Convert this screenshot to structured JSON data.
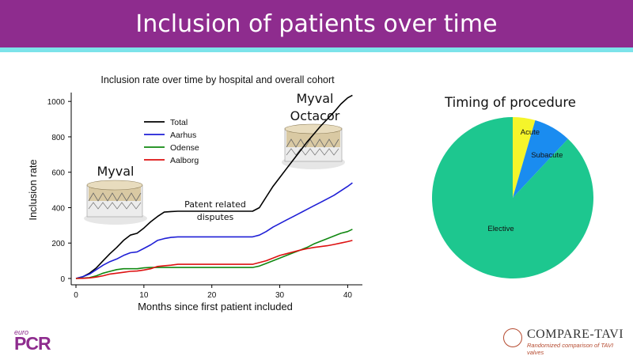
{
  "slide": {
    "title": "Inclusion of patients over time"
  },
  "annotations": {
    "myval_left": "Myval",
    "myval_right_line1": "Myval",
    "myval_right_line2": "Octacor",
    "dispute_line1": "Patent related",
    "dispute_line2": "disputes"
  },
  "footer": {
    "left_logo_small": "euro",
    "left_logo_main": "PCR",
    "right_logo_name": "COMPARE-TAVI",
    "right_logo_tagline": "Randomized comparison of TAVI valves"
  },
  "colors": {
    "header": "#8e2c8e",
    "header_strip": "#7ce3ea",
    "total": "#000000",
    "aarhus": "#1f1fd6",
    "odense": "#118811",
    "aalborg": "#dd1111",
    "pie_acute": "#f5f52a",
    "pie_subacute": "#1a8cf0",
    "pie_elective": "#1dc78f"
  },
  "chart_data": [
    {
      "type": "line",
      "title": "Inclusion rate over time by hospital and overall cohort",
      "xlabel": "Months since first patient included",
      "ylabel": "Inclusion rate",
      "xlim": [
        0,
        41
      ],
      "ylim": [
        0,
        1050
      ],
      "xticks": [
        0,
        10,
        20,
        30,
        40
      ],
      "yticks": [
        0,
        200,
        400,
        600,
        800,
        1000
      ],
      "grid": false,
      "legend_position": "top-center",
      "series": [
        {
          "name": "Total",
          "color_key": "total",
          "points": [
            [
              0,
              0
            ],
            [
              1,
              10
            ],
            [
              2,
              30
            ],
            [
              3,
              60
            ],
            [
              4,
              100
            ],
            [
              5,
              140
            ],
            [
              6,
              175
            ],
            [
              7,
              215
            ],
            [
              8,
              245
            ],
            [
              9,
              255
            ],
            [
              10,
              285
            ],
            [
              11,
              320
            ],
            [
              12,
              350
            ],
            [
              13,
              375
            ],
            [
              14,
              378
            ],
            [
              15,
              380
            ],
            [
              20,
              380
            ],
            [
              26,
              380
            ],
            [
              27,
              400
            ],
            [
              28,
              460
            ],
            [
              29,
              520
            ],
            [
              30,
              570
            ],
            [
              31,
              620
            ],
            [
              32,
              670
            ],
            [
              33,
              720
            ],
            [
              34,
              770
            ],
            [
              35,
              815
            ],
            [
              36,
              860
            ],
            [
              37,
              900
            ],
            [
              38,
              940
            ],
            [
              39,
              985
            ],
            [
              40,
              1020
            ],
            [
              40.7,
              1035
            ]
          ]
        },
        {
          "name": "Aarhus",
          "color_key": "aarhus",
          "points": [
            [
              0,
              0
            ],
            [
              1,
              10
            ],
            [
              2,
              25
            ],
            [
              3,
              50
            ],
            [
              4,
              75
            ],
            [
              5,
              95
            ],
            [
              6,
              110
            ],
            [
              7,
              130
            ],
            [
              8,
              145
            ],
            [
              9,
              150
            ],
            [
              10,
              170
            ],
            [
              11,
              190
            ],
            [
              12,
              215
            ],
            [
              13,
              225
            ],
            [
              14,
              232
            ],
            [
              15,
              235
            ],
            [
              20,
              235
            ],
            [
              26,
              235
            ],
            [
              27,
              245
            ],
            [
              28,
              265
            ],
            [
              29,
              290
            ],
            [
              30,
              310
            ],
            [
              31,
              330
            ],
            [
              32,
              350
            ],
            [
              33,
              370
            ],
            [
              34,
              390
            ],
            [
              35,
              410
            ],
            [
              36,
              430
            ],
            [
              37,
              450
            ],
            [
              38,
              470
            ],
            [
              39,
              495
            ],
            [
              40,
              520
            ],
            [
              40.7,
              540
            ]
          ]
        },
        {
          "name": "Odense",
          "color_key": "odense",
          "points": [
            [
              0,
              0
            ],
            [
              1,
              2
            ],
            [
              2,
              5
            ],
            [
              3,
              15
            ],
            [
              4,
              30
            ],
            [
              5,
              40
            ],
            [
              6,
              50
            ],
            [
              7,
              55
            ],
            [
              8,
              55
            ],
            [
              9,
              55
            ],
            [
              10,
              60
            ],
            [
              11,
              62
            ],
            [
              12,
              62
            ],
            [
              15,
              62
            ],
            [
              20,
              62
            ],
            [
              26,
              62
            ],
            [
              27,
              70
            ],
            [
              28,
              85
            ],
            [
              29,
              100
            ],
            [
              30,
              115
            ],
            [
              31,
              130
            ],
            [
              32,
              145
            ],
            [
              33,
              160
            ],
            [
              34,
              175
            ],
            [
              35,
              195
            ],
            [
              36,
              210
            ],
            [
              37,
              225
            ],
            [
              38,
              240
            ],
            [
              39,
              255
            ],
            [
              40,
              265
            ],
            [
              40.7,
              278
            ]
          ]
        },
        {
          "name": "Aalborg",
          "color_key": "aalborg",
          "points": [
            [
              0,
              0
            ],
            [
              1,
              1
            ],
            [
              2,
              3
            ],
            [
              3,
              8
            ],
            [
              4,
              15
            ],
            [
              5,
              25
            ],
            [
              6,
              30
            ],
            [
              7,
              35
            ],
            [
              8,
              40
            ],
            [
              9,
              42
            ],
            [
              10,
              48
            ],
            [
              11,
              55
            ],
            [
              12,
              68
            ],
            [
              13,
              72
            ],
            [
              14,
              75
            ],
            [
              15,
              80
            ],
            [
              20,
              80
            ],
            [
              26,
              80
            ],
            [
              27,
              90
            ],
            [
              28,
              100
            ],
            [
              29,
              115
            ],
            [
              30,
              130
            ],
            [
              31,
              140
            ],
            [
              32,
              150
            ],
            [
              33,
              160
            ],
            [
              34,
              168
            ],
            [
              35,
              175
            ],
            [
              36,
              180
            ],
            [
              37,
              185
            ],
            [
              38,
              192
            ],
            [
              39,
              200
            ],
            [
              40,
              208
            ],
            [
              40.7,
              215
            ]
          ]
        }
      ]
    },
    {
      "type": "pie",
      "title": "Timing of procedure",
      "slices": [
        {
          "label": "Acute",
          "value": 4.5,
          "color_key": "pie_acute"
        },
        {
          "label": "Subacute",
          "value": 7.5,
          "color_key": "pie_subacute"
        },
        {
          "label": "Elective",
          "value": 88,
          "color_key": "pie_elective"
        }
      ]
    }
  ]
}
